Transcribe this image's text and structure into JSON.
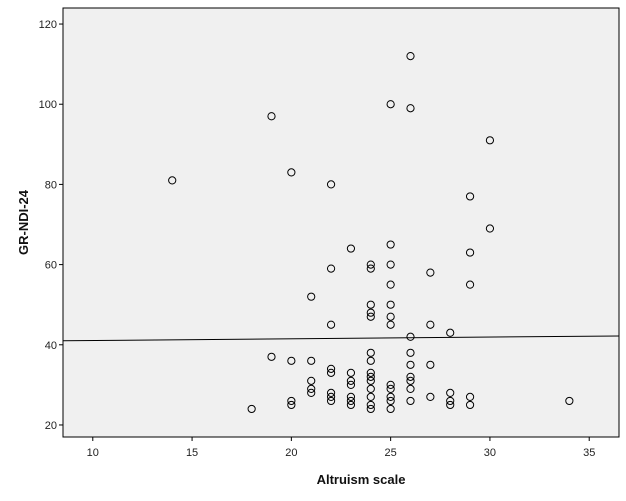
{
  "chart_data": {
    "type": "scatter",
    "title": "",
    "xlabel": "Altruism scale",
    "ylabel": "GR-NDI-24",
    "xlim": [
      8.5,
      36.5
    ],
    "ylim": [
      17,
      124
    ],
    "x_ticks": [
      10,
      15,
      20,
      25,
      30,
      35
    ],
    "y_ticks": [
      20,
      40,
      60,
      80,
      100,
      120
    ],
    "grid": false,
    "legend": "none",
    "colors": {
      "plot_background": "#f0f0f0",
      "marker_stroke": "#000000",
      "fit_line": "#000000"
    },
    "fit_line": {
      "x": [
        8.5,
        36.5
      ],
      "y": [
        41.0,
        42.2
      ]
    },
    "series": [
      {
        "marker": "open-circle",
        "points": [
          [
            14,
            81
          ],
          [
            18,
            24
          ],
          [
            19,
            97
          ],
          [
            19,
            37
          ],
          [
            20,
            83
          ],
          [
            20,
            36
          ],
          [
            20,
            26
          ],
          [
            20,
            25
          ],
          [
            21,
            52
          ],
          [
            21,
            36
          ],
          [
            21,
            31
          ],
          [
            21,
            29
          ],
          [
            21,
            28
          ],
          [
            22,
            80
          ],
          [
            22,
            59
          ],
          [
            22,
            45
          ],
          [
            22,
            34
          ],
          [
            22,
            33
          ],
          [
            22,
            28
          ],
          [
            22,
            27
          ],
          [
            22,
            26
          ],
          [
            23,
            64
          ],
          [
            23,
            33
          ],
          [
            23,
            31
          ],
          [
            23,
            30
          ],
          [
            23,
            27
          ],
          [
            23,
            26
          ],
          [
            23,
            25
          ],
          [
            24,
            60
          ],
          [
            24,
            59
          ],
          [
            24,
            50
          ],
          [
            24,
            48
          ],
          [
            24,
            47
          ],
          [
            24,
            38
          ],
          [
            24,
            36
          ],
          [
            24,
            33
          ],
          [
            24,
            32
          ],
          [
            24,
            31
          ],
          [
            24,
            29
          ],
          [
            24,
            27
          ],
          [
            24,
            25
          ],
          [
            24,
            24
          ],
          [
            25,
            100
          ],
          [
            25,
            65
          ],
          [
            25,
            60
          ],
          [
            25,
            55
          ],
          [
            25,
            50
          ],
          [
            25,
            47
          ],
          [
            25,
            45
          ],
          [
            25,
            30
          ],
          [
            25,
            29
          ],
          [
            25,
            27
          ],
          [
            25,
            26
          ],
          [
            25,
            24
          ],
          [
            26,
            112
          ],
          [
            26,
            99
          ],
          [
            26,
            42
          ],
          [
            26,
            38
          ],
          [
            26,
            35
          ],
          [
            26,
            32
          ],
          [
            26,
            31
          ],
          [
            26,
            29
          ],
          [
            26,
            26
          ],
          [
            27,
            58
          ],
          [
            27,
            45
          ],
          [
            27,
            35
          ],
          [
            27,
            27
          ],
          [
            28,
            43
          ],
          [
            28,
            28
          ],
          [
            28,
            26
          ],
          [
            28,
            25
          ],
          [
            29,
            77
          ],
          [
            29,
            63
          ],
          [
            29,
            55
          ],
          [
            29,
            27
          ],
          [
            29,
            25
          ],
          [
            30,
            91
          ],
          [
            30,
            69
          ],
          [
            34,
            26
          ]
        ]
      }
    ]
  }
}
